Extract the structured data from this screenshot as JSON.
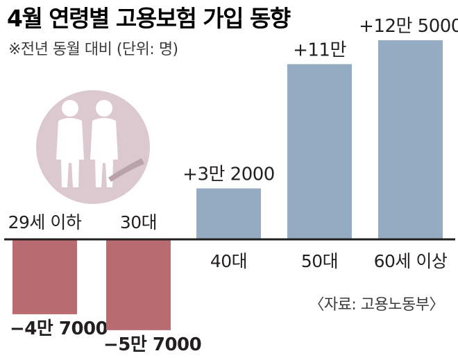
{
  "chart_data": {
    "type": "bar",
    "title": "4월 연령별 고용보험 가입 동향",
    "subtitle": "※전년 동월 대비 (단위: 명)",
    "source": "〈자료: 고용노동부〉",
    "categories": [
      "29세 이하",
      "30대",
      "40대",
      "50대",
      "60세 이상"
    ],
    "values": [
      -47000,
      -57000,
      32000,
      110000,
      125000
    ],
    "value_labels": [
      "−4만 7000",
      "−5만 7000",
      "+3만 2000",
      "+11만",
      "+12만 5000"
    ],
    "colors": {
      "positive": "#94abc1",
      "negative": "#b86b70",
      "illustration_circle": "#dcc8cf",
      "baseline": "#231f20"
    },
    "grid": false,
    "legend": "none"
  }
}
